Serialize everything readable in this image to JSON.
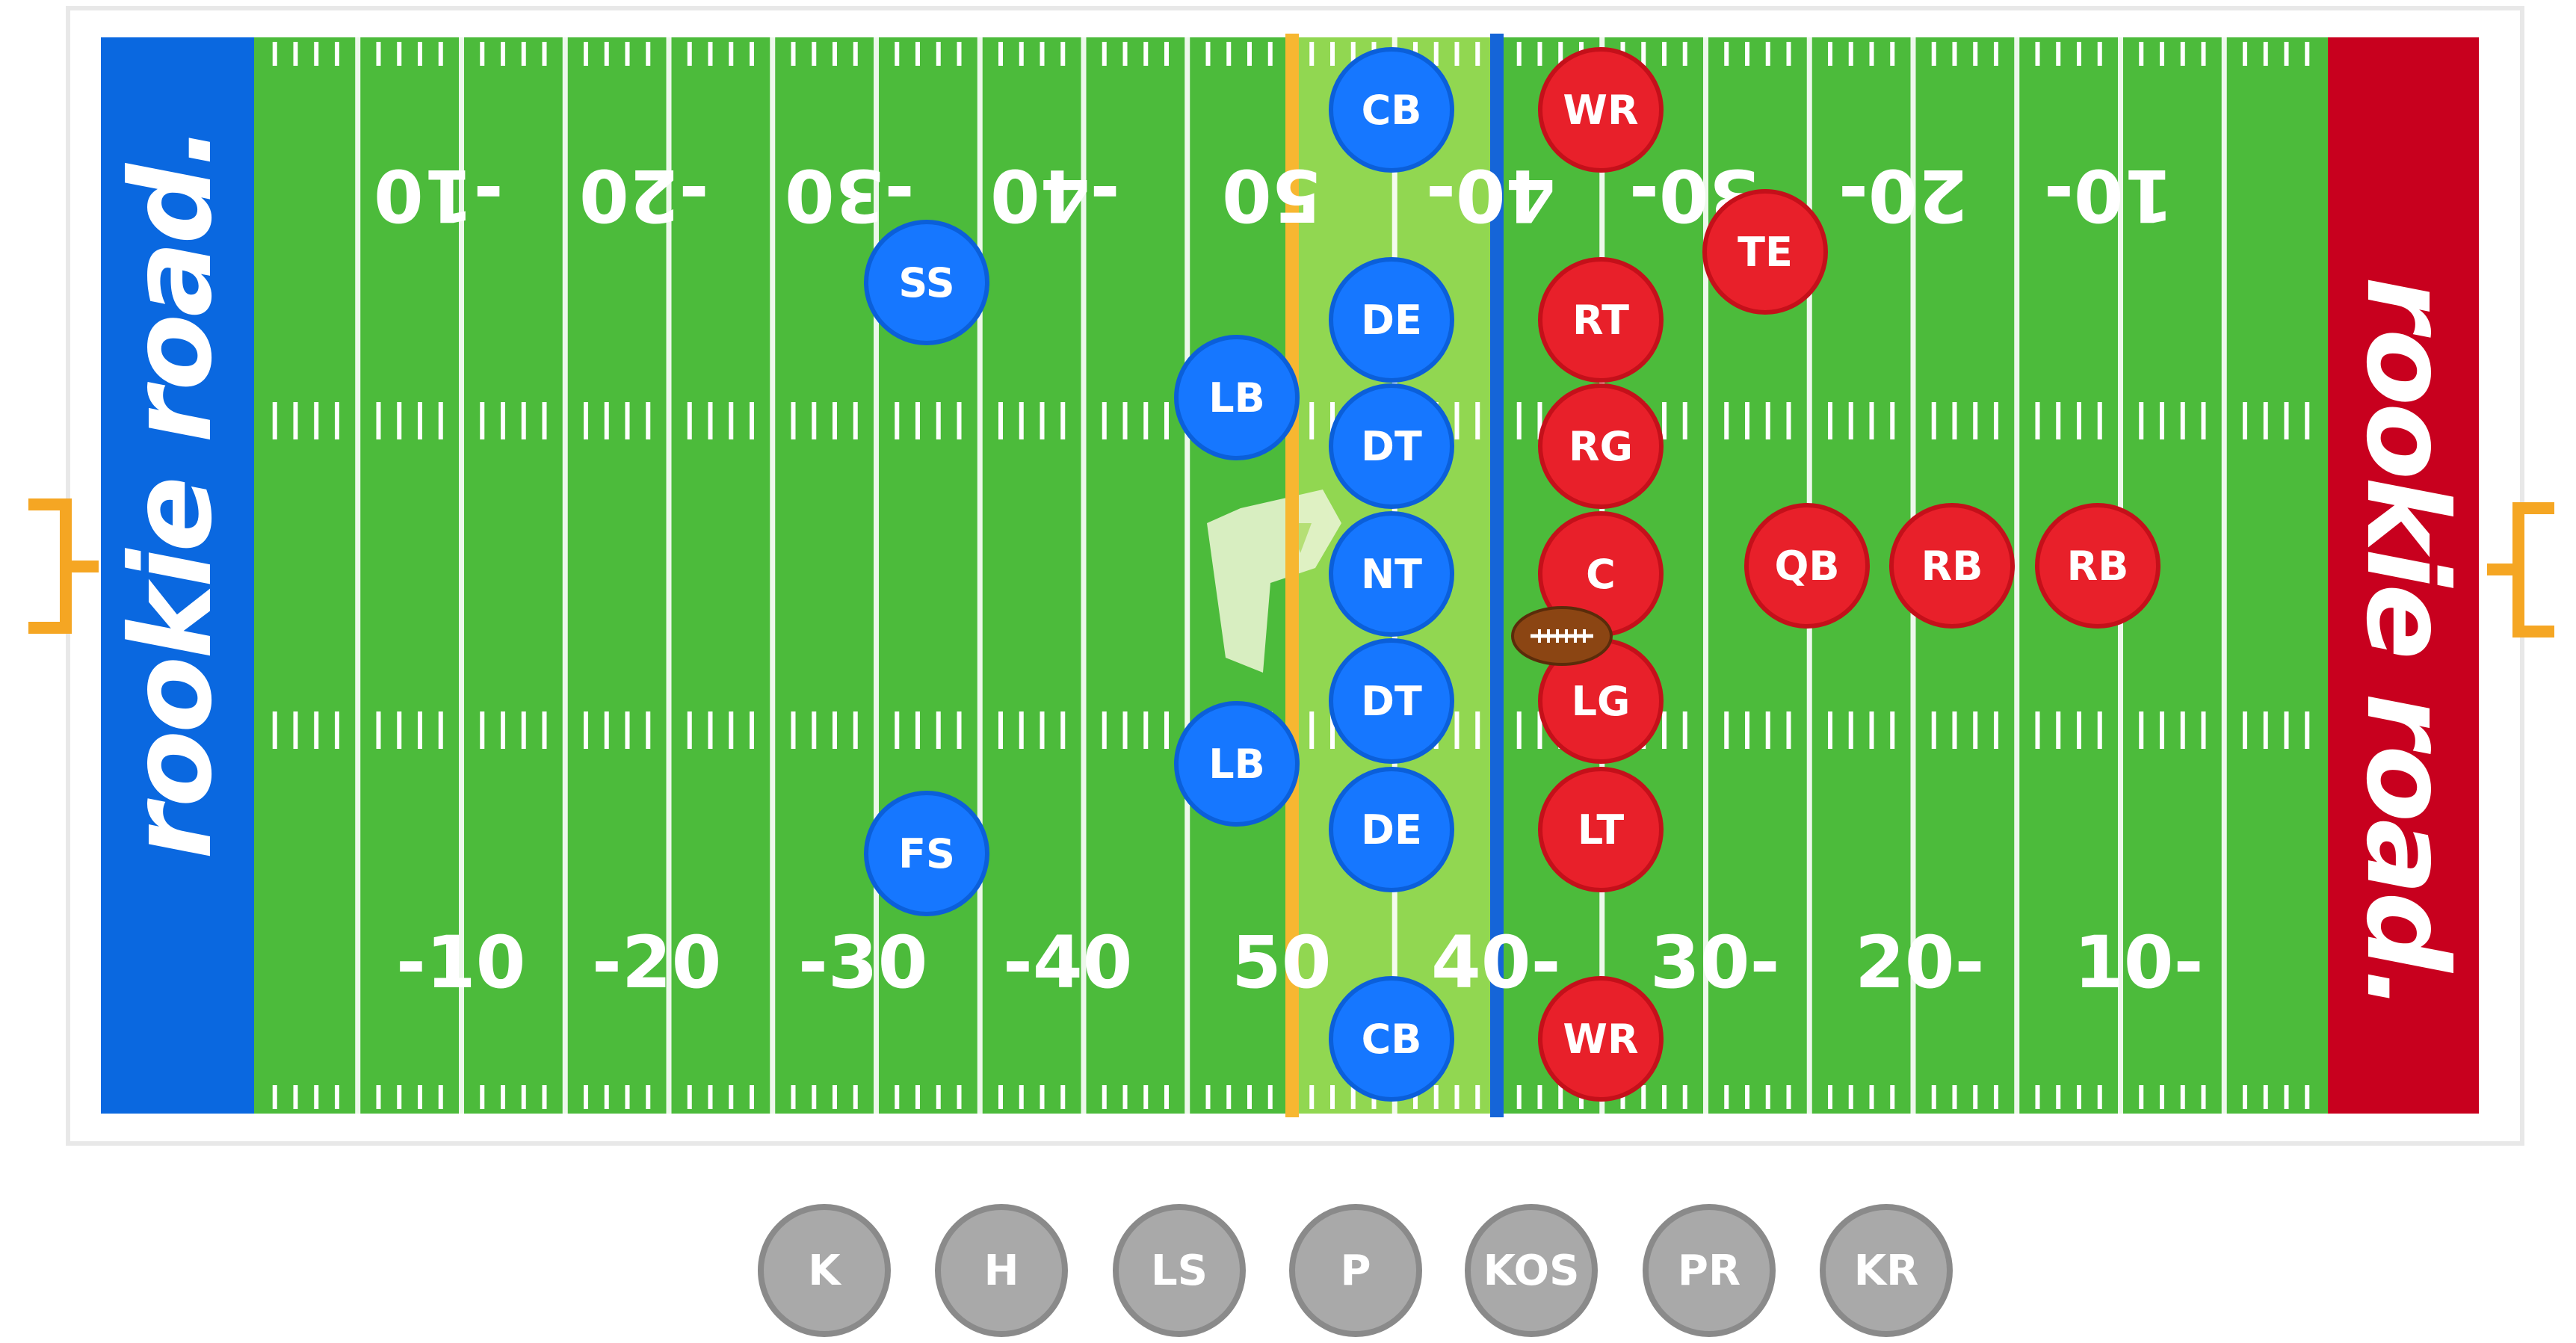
{
  "colors": {
    "field_green": "#4cbb3b",
    "stripe_green": "#44b034",
    "scrimmage_zone": "#a8e05a",
    "endzone_left": "#0a68e0",
    "endzone_right": "#c8001e",
    "defense": "#1677ff",
    "offense": "#e8202a",
    "line_of_scrimmage": "#1565d8",
    "first_down_line": "#f7b731",
    "goalpost": "#f5a623",
    "special_teams": "#a9a9a9"
  },
  "endzones": {
    "left": {
      "text": "rookie road."
    },
    "right": {
      "text": "rookie road."
    }
  },
  "yard_numbers": {
    "bottom": [
      "-10",
      "-20",
      "-30",
      "-40",
      "50",
      "40-",
      "30-",
      "20-",
      "10-"
    ],
    "top": [
      "-10",
      "-20",
      "-30",
      "-40",
      "50",
      "40-",
      "30-",
      "20-",
      "10-"
    ]
  },
  "midfield_logo": "rookie-road-logo-icon",
  "defense": [
    {
      "pos": "CB",
      "id": "cb-top"
    },
    {
      "pos": "SS",
      "id": "ss"
    },
    {
      "pos": "DE",
      "id": "de-top"
    },
    {
      "pos": "LB",
      "id": "lb-top"
    },
    {
      "pos": "DT",
      "id": "dt-top"
    },
    {
      "pos": "NT",
      "id": "nt"
    },
    {
      "pos": "DT",
      "id": "dt-bottom"
    },
    {
      "pos": "LB",
      "id": "lb-bottom"
    },
    {
      "pos": "DE",
      "id": "de-bottom"
    },
    {
      "pos": "FS",
      "id": "fs"
    },
    {
      "pos": "CB",
      "id": "cb-bottom"
    }
  ],
  "offense": [
    {
      "pos": "WR",
      "id": "wr-top"
    },
    {
      "pos": "TE",
      "id": "te"
    },
    {
      "pos": "RT",
      "id": "rt"
    },
    {
      "pos": "RG",
      "id": "rg"
    },
    {
      "pos": "C",
      "id": "c"
    },
    {
      "pos": "QB",
      "id": "qb"
    },
    {
      "pos": "RB",
      "id": "rb-1"
    },
    {
      "pos": "RB",
      "id": "rb-2"
    },
    {
      "pos": "LG",
      "id": "lg"
    },
    {
      "pos": "LT",
      "id": "lt"
    },
    {
      "pos": "WR",
      "id": "wr-bottom"
    }
  ],
  "ball": "football-icon",
  "special_teams": [
    "K",
    "H",
    "LS",
    "P",
    "KOS",
    "PR",
    "KR"
  ]
}
